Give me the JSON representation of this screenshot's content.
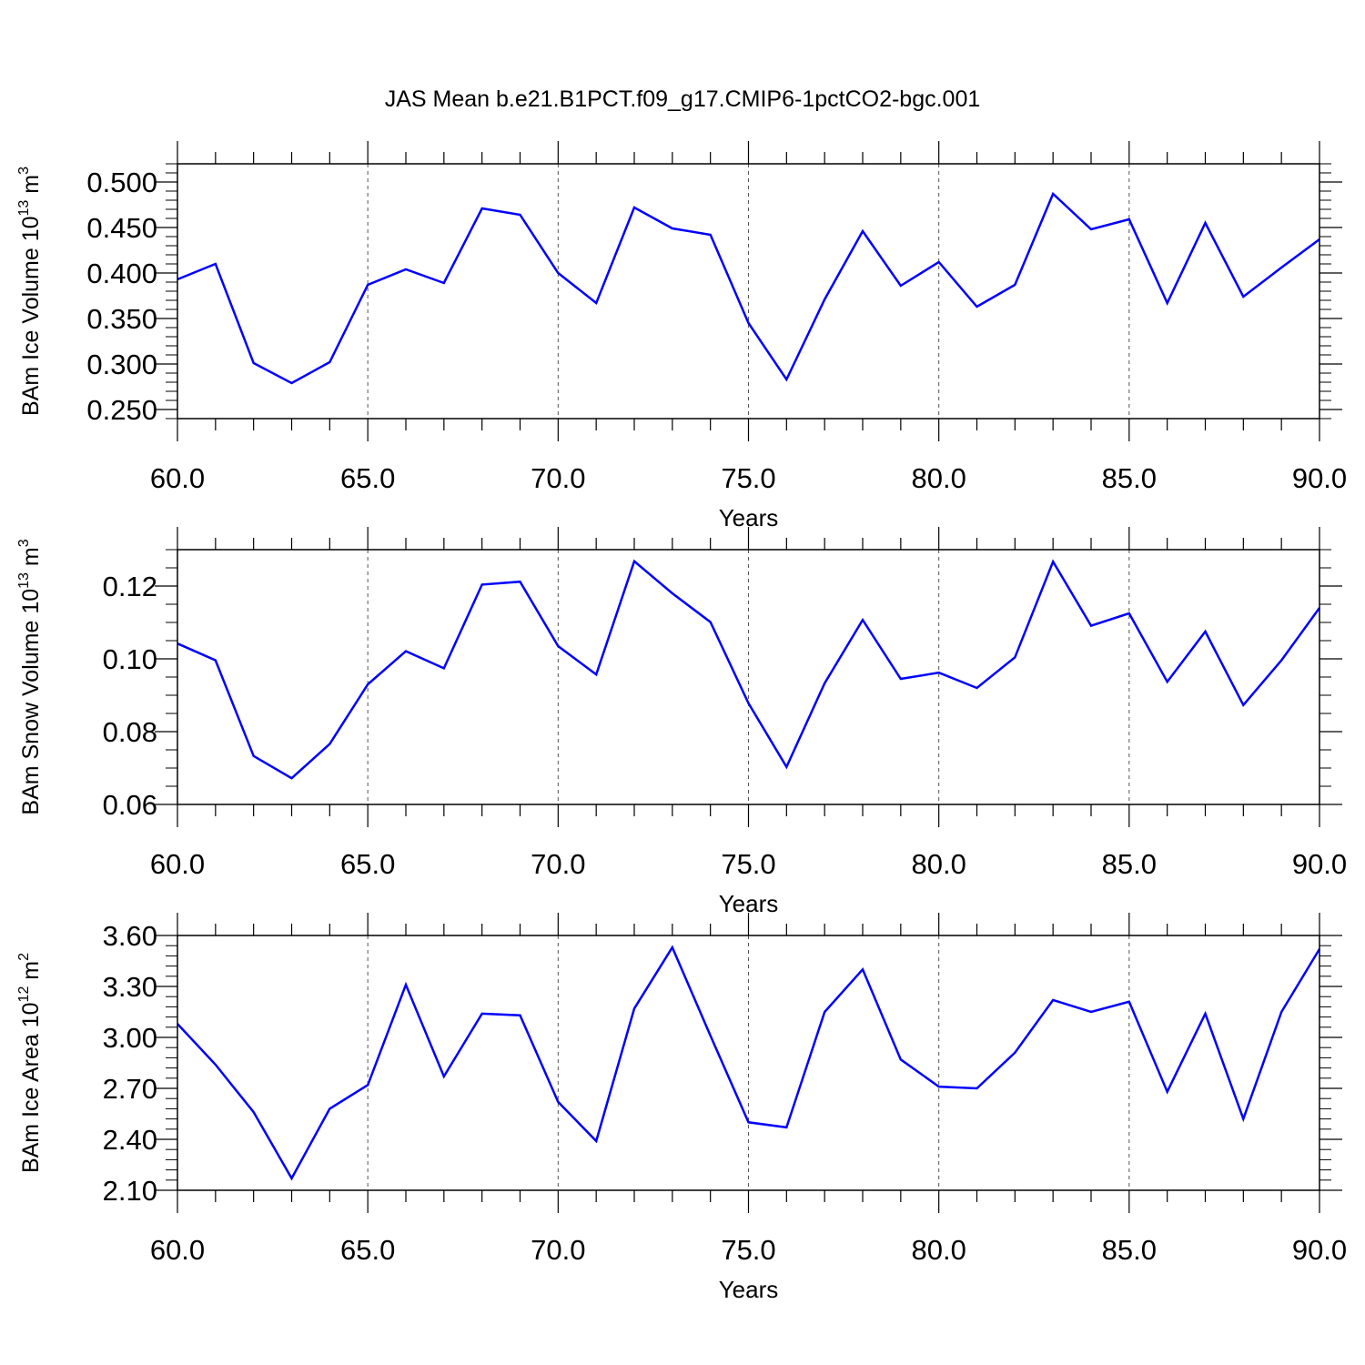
{
  "title": "JAS Mean b.e21.B1PCT.f09_g17.CMIP6-1pctCO2-bgc.001",
  "series_color": "#0000ff",
  "chart_data": [
    {
      "type": "line",
      "ylabel": {
        "main": "BAm Ice Volume 10",
        "exp": "13",
        "unit": " m",
        "unit_exp": "3"
      },
      "xlabel": "Years",
      "xlim": [
        60,
        90
      ],
      "ylim": [
        0.24,
        0.52
      ],
      "xticks": [
        "60.0",
        "65.0",
        "70.0",
        "75.0",
        "80.0",
        "85.0",
        "90.0"
      ],
      "yticks": [
        "0.250",
        "0.300",
        "0.350",
        "0.400",
        "0.450",
        "0.500"
      ],
      "x": [
        60,
        61,
        62,
        63,
        64,
        65,
        66,
        67,
        68,
        69,
        70,
        71,
        72,
        73,
        74,
        75,
        76,
        77,
        78,
        79,
        80,
        81,
        82,
        83,
        84,
        85,
        86,
        87,
        88,
        89,
        90
      ],
      "values": [
        0.393,
        0.41,
        0.301,
        0.279,
        0.302,
        0.387,
        0.404,
        0.389,
        0.471,
        0.464,
        0.4,
        0.367,
        0.472,
        0.449,
        0.442,
        0.345,
        0.283,
        0.371,
        0.446,
        0.386,
        0.412,
        0.363,
        0.387,
        0.487,
        0.448,
        0.459,
        0.367,
        0.455,
        0.374,
        0.406,
        0.437
      ]
    },
    {
      "type": "line",
      "ylabel": {
        "main": "BAm Snow Volume 10",
        "exp": "13",
        "unit": " m",
        "unit_exp": "3"
      },
      "xlabel": "Years",
      "xlim": [
        60,
        90
      ],
      "ylim": [
        0.06,
        0.13
      ],
      "xticks": [
        "60.0",
        "65.0",
        "70.0",
        "75.0",
        "80.0",
        "85.0",
        "90.0"
      ],
      "yticks": [
        "0.06",
        "0.08",
        "0.10",
        "0.12"
      ],
      "x": [
        60,
        61,
        62,
        63,
        64,
        65,
        66,
        67,
        68,
        69,
        70,
        71,
        72,
        73,
        74,
        75,
        76,
        77,
        78,
        79,
        80,
        81,
        82,
        83,
        84,
        85,
        86,
        87,
        88,
        89,
        90
      ],
      "values": [
        0.1042,
        0.0996,
        0.0733,
        0.0672,
        0.0766,
        0.093,
        0.1021,
        0.0974,
        0.1204,
        0.1212,
        0.1035,
        0.0957,
        0.1268,
        0.118,
        0.1101,
        0.0878,
        0.0703,
        0.0933,
        0.1107,
        0.0945,
        0.0962,
        0.092,
        0.1004,
        0.1267,
        0.1091,
        0.1125,
        0.0937,
        0.1075,
        0.0873,
        0.0996,
        0.114
      ]
    },
    {
      "type": "line",
      "ylabel": {
        "main": "BAm Ice Area 10",
        "exp": "12",
        "unit": " m",
        "unit_exp": "2"
      },
      "xlabel": "Years",
      "xlim": [
        60,
        90
      ],
      "ylim": [
        2.1,
        3.6
      ],
      "xticks": [
        "60.0",
        "65.0",
        "70.0",
        "75.0",
        "80.0",
        "85.0",
        "90.0"
      ],
      "yticks": [
        "2.10",
        "2.40",
        "2.70",
        "3.00",
        "3.30",
        "3.60"
      ],
      "x": [
        60,
        61,
        62,
        63,
        64,
        65,
        66,
        67,
        68,
        69,
        70,
        71,
        72,
        73,
        74,
        75,
        76,
        77,
        78,
        79,
        80,
        81,
        82,
        83,
        84,
        85,
        86,
        87,
        88,
        89,
        90
      ],
      "values": [
        3.08,
        2.84,
        2.56,
        2.17,
        2.58,
        2.72,
        3.31,
        2.77,
        3.14,
        3.13,
        2.62,
        2.39,
        3.17,
        3.53,
        3.01,
        2.5,
        2.47,
        3.15,
        3.4,
        2.87,
        2.71,
        2.7,
        2.91,
        3.22,
        3.15,
        3.21,
        2.68,
        3.14,
        2.52,
        3.15,
        3.52
      ]
    }
  ]
}
